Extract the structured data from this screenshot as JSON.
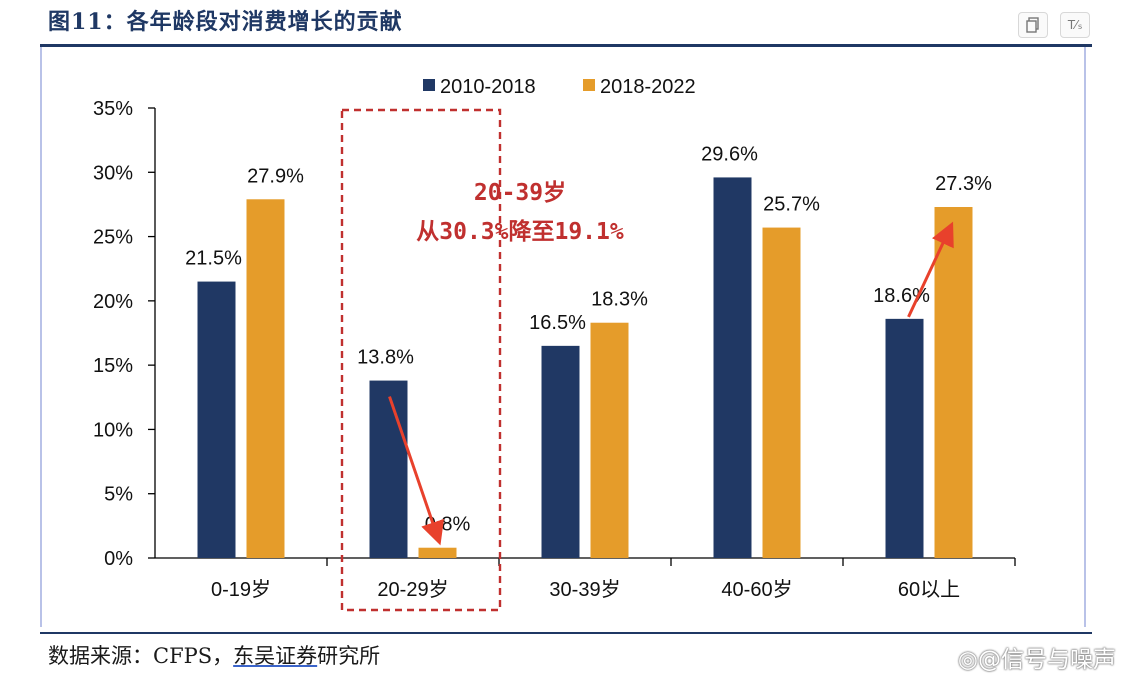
{
  "figure": {
    "title": "图11：各年龄段对消费增长的贡献",
    "source_prefix": "数据来源：CFPS，",
    "source_link": "东吴证券",
    "source_suffix": "研究所"
  },
  "watermark": "◎@信号与噪声",
  "toolbar": {
    "copy_icon": "copy-icon",
    "translate_label": "T⁄ₛ"
  },
  "chart_data": {
    "type": "bar",
    "categories": [
      "0-19岁",
      "20-29岁",
      "30-39岁",
      "40-60岁",
      "60以上"
    ],
    "series": [
      {
        "name": "2010-2018",
        "values": [
          21.5,
          13.8,
          16.5,
          29.6,
          18.6
        ],
        "labels": [
          "21.5%",
          "13.8%",
          "16.5%",
          "29.6%",
          "18.6%"
        ]
      },
      {
        "name": "2018-2022",
        "values": [
          27.9,
          0.8,
          18.3,
          25.7,
          27.3
        ],
        "labels": [
          "27.9%",
          "0.8%",
          "18.3%",
          "25.7%",
          "27.3%"
        ]
      }
    ],
    "y_ticks": [
      "0%",
      "5%",
      "10%",
      "15%",
      "20%",
      "25%",
      "30%",
      "35%"
    ],
    "ylim": [
      0,
      35
    ],
    "legend_position": "top",
    "colors": {
      "2010-2018": "#203864",
      "2018-2022": "#e59c2a",
      "annotation": "#c0302f",
      "arrow": "#e8412c"
    },
    "annotation": {
      "line1": "20-39岁",
      "line2": "从30.3%降至19.1%"
    }
  }
}
